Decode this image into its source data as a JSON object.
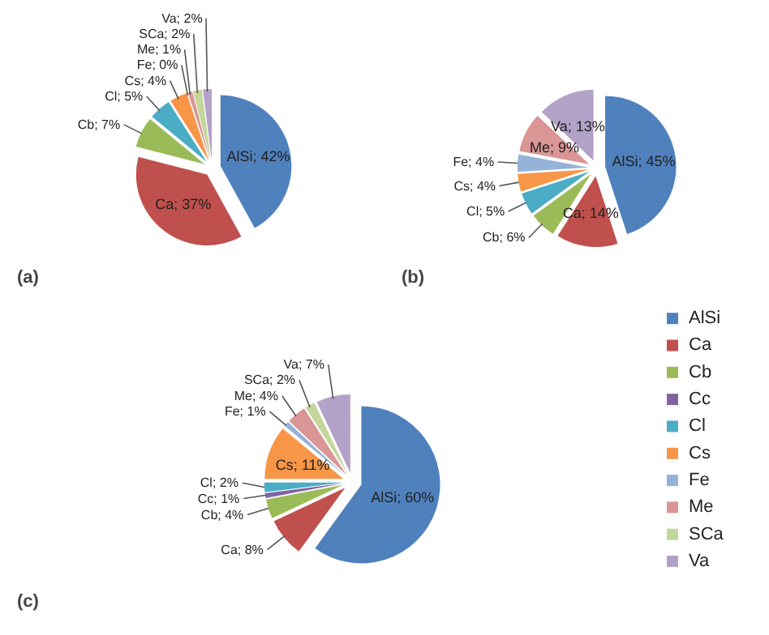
{
  "chart_data": [
    {
      "type": "pie",
      "title": "(a)",
      "legend": false,
      "categories": [
        null,
        null,
        null,
        null,
        null,
        null,
        null,
        null,
        null
      ],
      "values": [
        42,
        37,
        7,
        5,
        4,
        0,
        1,
        2,
        2
      ],
      "value_labels": [
        "AlSi; 42%",
        "Ca; 37%",
        "Cb; 7%",
        "Cl; 5%",
        "Cs; 4%",
        "Fe; 0%",
        "Me; 1%",
        "SCa; 2%",
        "Va; 2%"
      ],
      "colors": [
        "#4f81bd",
        "#c0504d",
        "#9bbb59",
        "#4bacc6",
        "#f79646",
        "#95b3d7",
        "#d99694",
        "#c3d69b",
        "#b3a2c7"
      ]
    },
    {
      "type": "pie",
      "title": "(b)",
      "legend": false,
      "categories": [
        null,
        null,
        null,
        null,
        null,
        null,
        null,
        null
      ],
      "values": [
        45,
        14,
        6,
        5,
        4,
        4,
        9,
        13
      ],
      "value_labels": [
        "AlSi; 45%",
        "Ca; 14%",
        "Cb; 6%",
        "Cl; 5%",
        "Cs; 4%",
        "Fe; 4%",
        "Me; 9%",
        "Va; 13%"
      ],
      "colors": [
        "#4f81bd",
        "#c0504d",
        "#9bbb59",
        "#4bacc6",
        "#f79646",
        "#95b3d7",
        "#d99694",
        "#b3a2c7"
      ]
    },
    {
      "type": "pie",
      "title": "(c)",
      "legend": "right",
      "categories": [
        "AlSi",
        "Ca",
        "Cb",
        "Cc",
        "Cl",
        "Cs",
        "Fe",
        "Me",
        "SCa",
        "Va"
      ],
      "values": [
        60,
        8,
        4,
        1,
        2,
        11,
        1,
        4,
        2,
        7
      ],
      "value_labels": [
        "AlSi; 60%",
        "Ca; 8%",
        "Cb; 4%",
        "Cc; 1%",
        "Cl; 2%",
        "Cs; 11%",
        "Fe; 1%",
        "Me; 4%",
        "SCa; 2%",
        "Va; 7%"
      ],
      "colors": [
        "#4f81bd",
        "#c0504d",
        "#9bbb59",
        "#8064a2",
        "#4bacc6",
        "#f79646",
        "#95b3d7",
        "#d99694",
        "#c3d69b",
        "#b3a2c7"
      ]
    }
  ]
}
